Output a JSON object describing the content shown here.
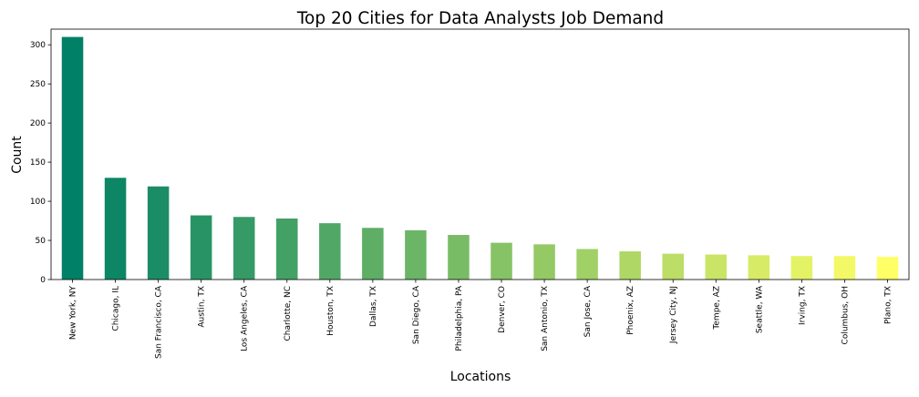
{
  "chart_data": {
    "type": "bar",
    "title": "Top 20 Cities for Data Analysts Job Demand",
    "xlabel": "Locations",
    "ylabel": "Count",
    "ylim": [
      0,
      320
    ],
    "yticks": [
      0,
      50,
      100,
      150,
      200,
      250,
      300
    ],
    "grid": false,
    "legend": "none",
    "colormap": "summer",
    "categories": [
      "New York, NY",
      "Chicago, IL",
      "San Francisco, CA",
      "Austin, TX",
      "Los Angeles, CA",
      "Charlotte, NC",
      "Houston, TX",
      "Dallas, TX",
      "San Diego, CA",
      "Philadelphia, PA",
      "Denver, CO",
      "San Antonio, TX",
      "San Jose, CA",
      "Phoenix, AZ",
      "Jersey City, NJ",
      "Tempe, AZ",
      "Seattle, WA",
      "Irving, TX",
      "Columbus, OH",
      "Plano, TX"
    ],
    "values": [
      310,
      130,
      119,
      82,
      80,
      78,
      72,
      66,
      63,
      57,
      47,
      45,
      39,
      36,
      33,
      32,
      31,
      30,
      30,
      29
    ]
  }
}
